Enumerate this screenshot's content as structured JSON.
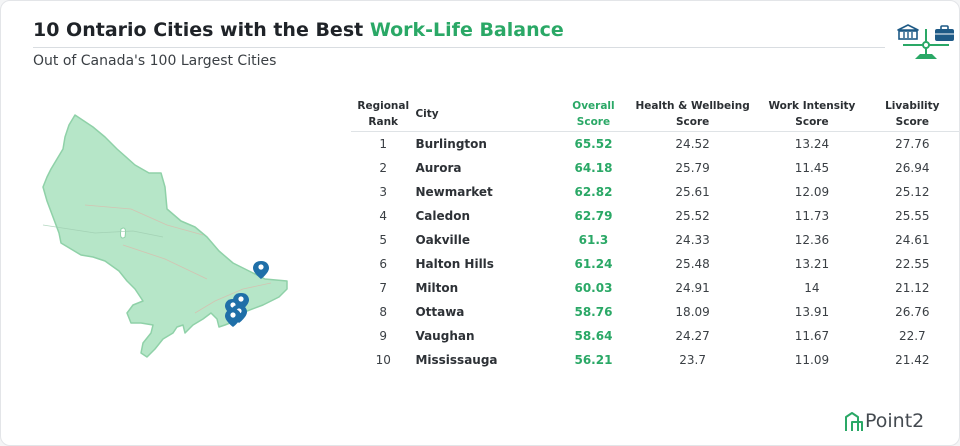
{
  "header": {
    "title_prefix": "10 Ontario Cities with the Best ",
    "title_highlight": "Work-Life Balance",
    "subtitle": "Out of Canada's 100 Largest Cities"
  },
  "colors": {
    "accent": "#2aa866",
    "map_fill": "#b6e6c8",
    "pin": "#1f6fa8"
  },
  "icons": [
    "balance-scale-icon",
    "bank-icon",
    "briefcase-icon",
    "location-pin-icon",
    "point2-logo-icon"
  ],
  "table": {
    "headers": {
      "rank": [
        "Regional",
        "Rank"
      ],
      "city": "City",
      "overall": [
        "Overall",
        "Score"
      ],
      "health": [
        "Health & Wellbeing",
        "Score"
      ],
      "work": [
        "Work Intensity",
        "Score"
      ],
      "live": [
        "Livability",
        "Score"
      ]
    },
    "rows": [
      {
        "rank": "1",
        "city": "Burlington",
        "overall": "65.52",
        "health": "24.52",
        "work": "13.24",
        "live": "27.76"
      },
      {
        "rank": "2",
        "city": "Aurora",
        "overall": "64.18",
        "health": "25.79",
        "work": "11.45",
        "live": "26.94"
      },
      {
        "rank": "3",
        "city": "Newmarket",
        "overall": "62.82",
        "health": "25.61",
        "work": "12.09",
        "live": "25.12"
      },
      {
        "rank": "4",
        "city": "Caledon",
        "overall": "62.79",
        "health": "25.52",
        "work": "11.73",
        "live": "25.55"
      },
      {
        "rank": "5",
        "city": "Oakville",
        "overall": "61.3",
        "health": "24.33",
        "work": "12.36",
        "live": "24.61"
      },
      {
        "rank": "6",
        "city": "Halton Hills",
        "overall": "61.24",
        "health": "25.48",
        "work": "13.21",
        "live": "22.55"
      },
      {
        "rank": "7",
        "city": "Milton",
        "overall": "60.03",
        "health": "24.91",
        "work": "14",
        "live": "21.12"
      },
      {
        "rank": "8",
        "city": "Ottawa",
        "overall": "58.76",
        "health": "18.09",
        "work": "13.91",
        "live": "26.76"
      },
      {
        "rank": "9",
        "city": "Vaughan",
        "overall": "58.64",
        "health": "24.27",
        "work": "11.67",
        "live": "22.7"
      },
      {
        "rank": "10",
        "city": "Mississauga",
        "overall": "56.21",
        "health": "23.7",
        "work": "11.09",
        "live": "21.42"
      }
    ]
  },
  "brand": {
    "name": "Point2"
  }
}
